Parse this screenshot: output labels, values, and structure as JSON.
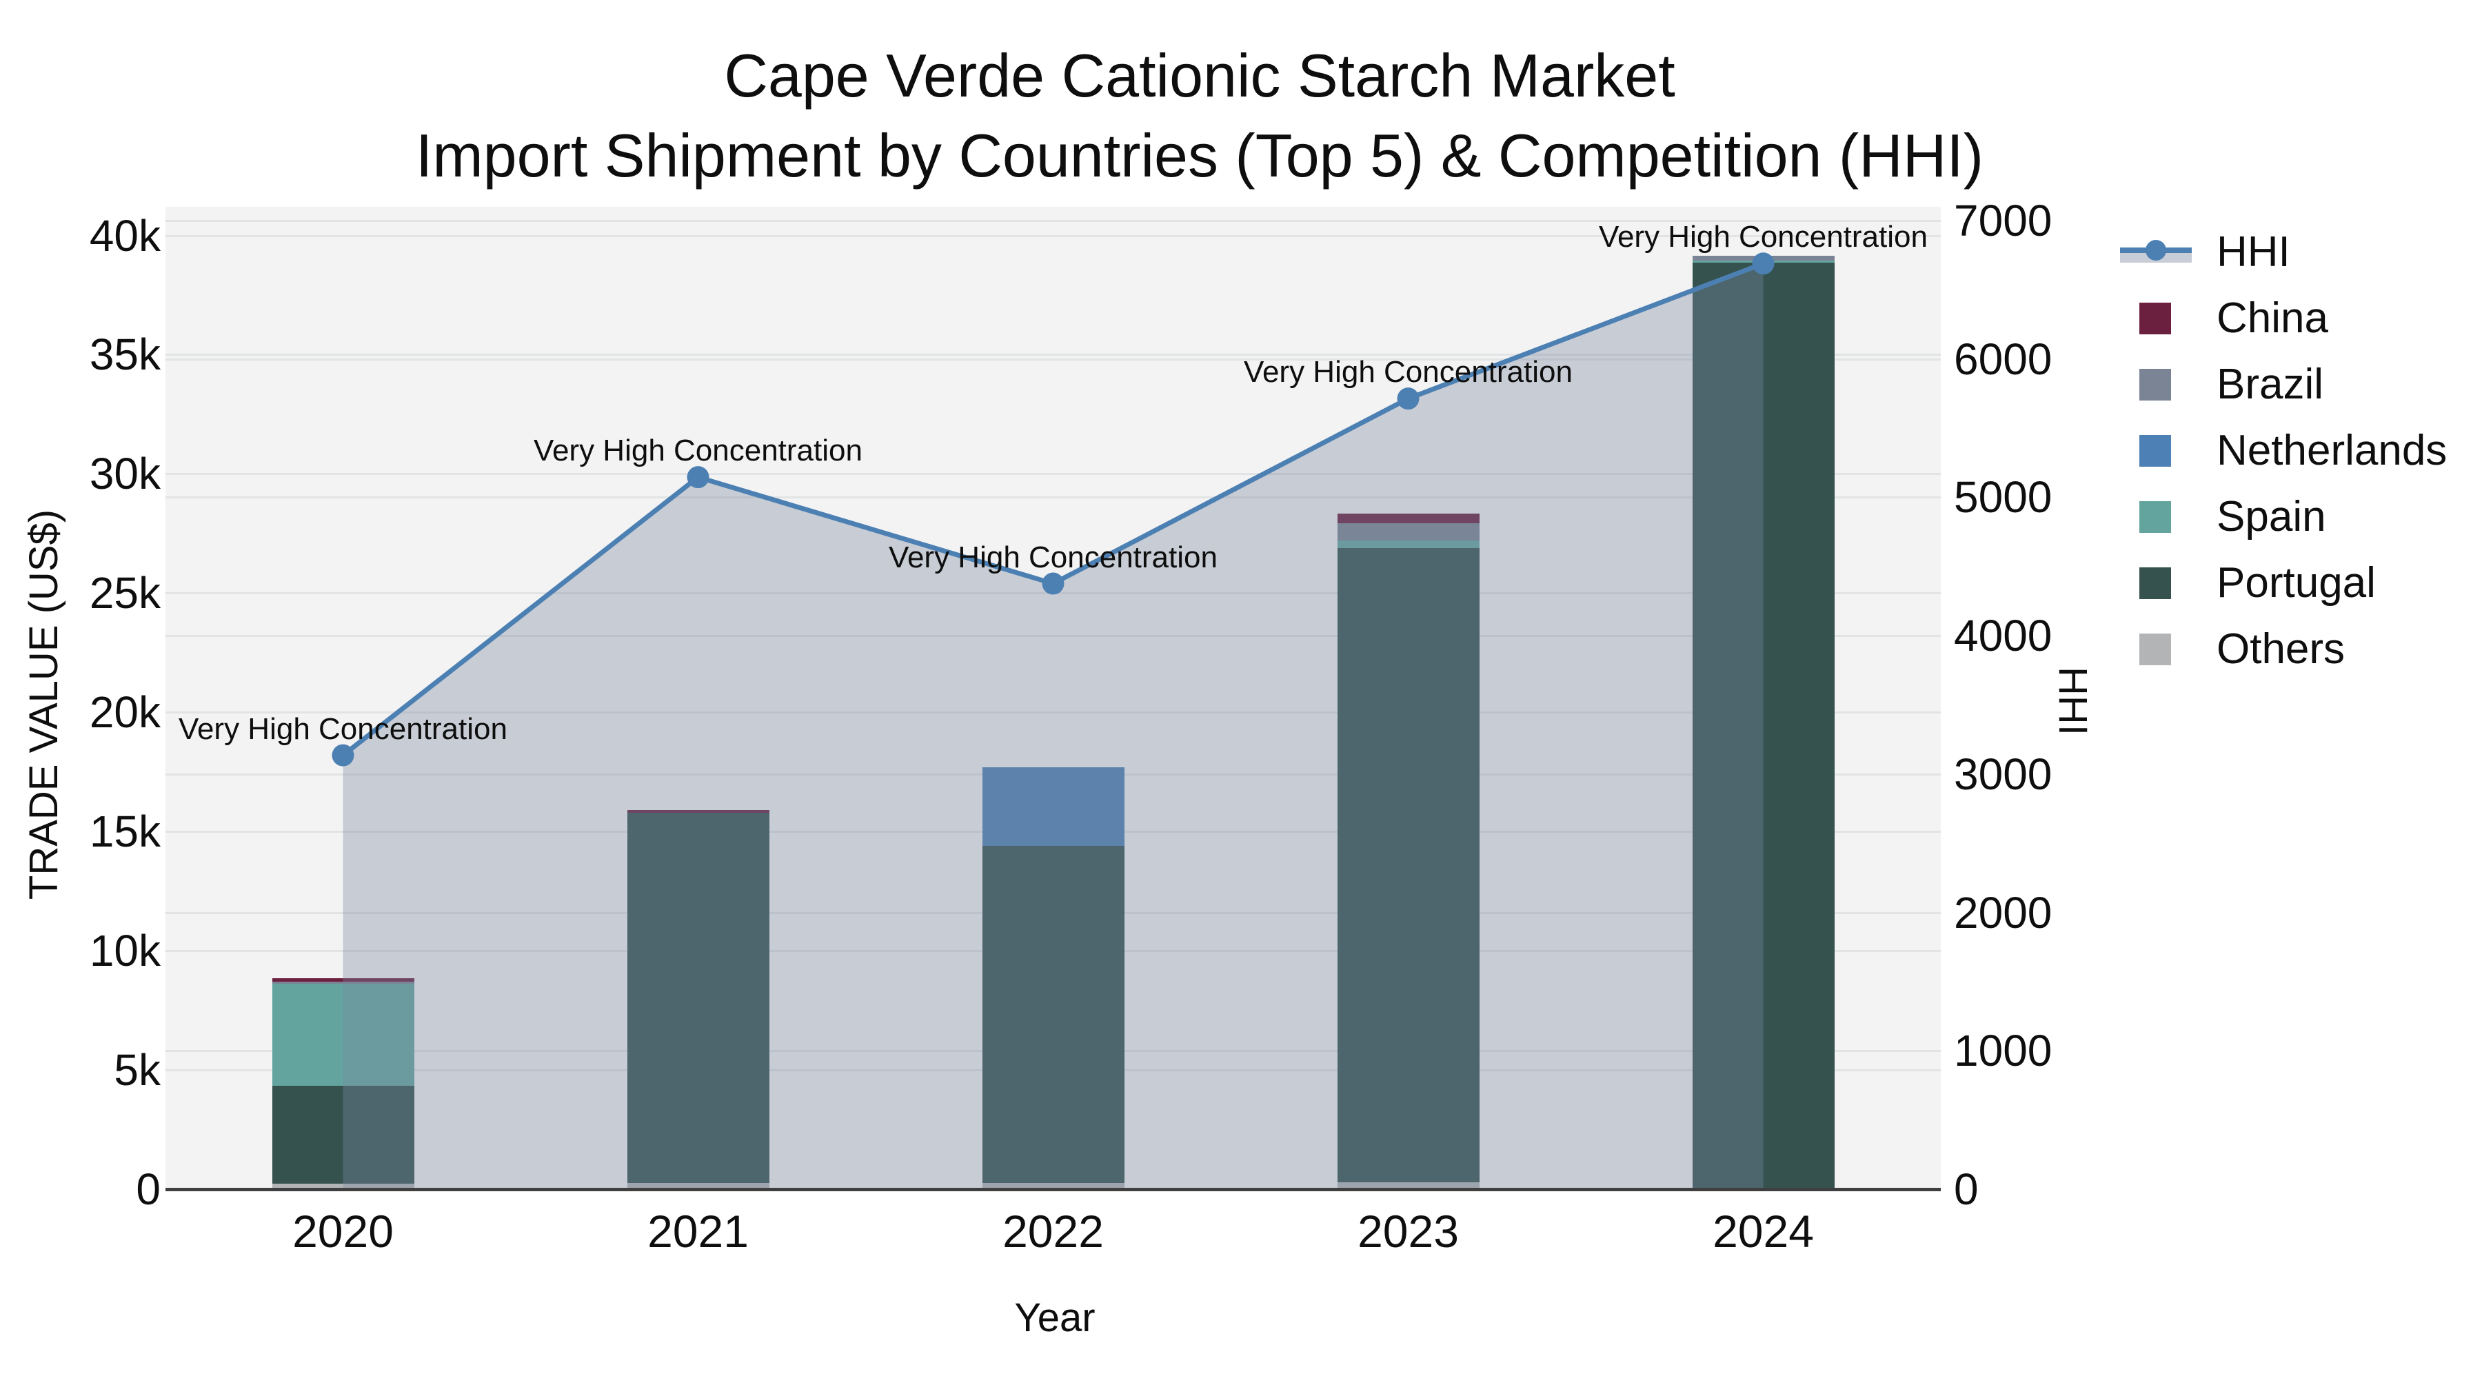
{
  "title": {
    "line1": "Cape Verde Cationic Starch Market",
    "line2": "Import Shipment by Countries (Top 5) & Competition (HHI)"
  },
  "axes": {
    "left": {
      "title": "TRADE VALUE (US$)"
    },
    "right": {
      "title": "HHI"
    },
    "x": {
      "title": "Year"
    }
  },
  "legend": {
    "hhi_band_color": "#c9cdd7",
    "items": [
      {
        "label": "HHI",
        "color": "#4c80b3",
        "type": "line"
      },
      {
        "label": "China",
        "color": "#6b2040",
        "type": "square"
      },
      {
        "label": "Brazil",
        "color": "#7a8494",
        "type": "square"
      },
      {
        "label": "Netherlands",
        "color": "#4d80b5",
        "type": "square"
      },
      {
        "label": "Spain",
        "color": "#63a49f",
        "type": "square"
      },
      {
        "label": "Portugal",
        "color": "#35524f",
        "type": "square"
      },
      {
        "label": "Others",
        "color": "#b3b4b6",
        "type": "square"
      }
    ]
  },
  "chart_data": {
    "type": "combo",
    "title": "Cape Verde Cationic Starch Market — Import Shipment by Countries (Top 5) & Competition (HHI)",
    "xlabel": "Year",
    "ylabel_left": "TRADE VALUE (US$)",
    "ylabel_right": "HHI",
    "categories": [
      "2020",
      "2021",
      "2022",
      "2023",
      "2024"
    ],
    "ylim_left": [
      0,
      41200
    ],
    "ylim_right": [
      0,
      7100
    ],
    "left_ticks": {
      "values": [
        0,
        5000,
        10000,
        15000,
        20000,
        25000,
        30000,
        35000,
        40000
      ],
      "labels": [
        "0",
        "5k",
        "10k",
        "15k",
        "20k",
        "25k",
        "30k",
        "35k",
        "40k"
      ]
    },
    "right_ticks": {
      "values": [
        0,
        1000,
        2000,
        3000,
        4000,
        5000,
        6000,
        7000
      ],
      "labels": [
        "0",
        "1000",
        "2000",
        "3000",
        "4000",
        "5000",
        "6000",
        "7000"
      ]
    },
    "bar_stack_order_bottom_to_top": [
      "Others",
      "Portugal",
      "Spain",
      "Netherlands",
      "Brazil",
      "China"
    ],
    "bar_series": [
      {
        "name": "Others",
        "color": "#b3b4b6",
        "values": [
          230,
          250,
          260,
          300,
          0
        ]
      },
      {
        "name": "Portugal",
        "color": "#35524f",
        "values": [
          4100,
          15530,
          14140,
          26600,
          38850
        ]
      },
      {
        "name": "Spain",
        "color": "#63a49f",
        "values": [
          4280,
          0,
          0,
          320,
          90
        ]
      },
      {
        "name": "Netherlands",
        "color": "#4d80b5",
        "values": [
          0,
          0,
          3300,
          0,
          0
        ]
      },
      {
        "name": "Brazil",
        "color": "#7a8494",
        "values": [
          90,
          0,
          0,
          720,
          200
        ]
      },
      {
        "name": "China",
        "color": "#6b2040",
        "values": [
          150,
          120,
          0,
          380,
          0
        ]
      }
    ],
    "bar_totals": [
      8850,
      15900,
      17700,
      28320,
      39140
    ],
    "line_series": {
      "name": "HHI",
      "axis": "right",
      "color": "#4c80b3",
      "fill_color": "#7a88a0",
      "fill_opacity": 0.36,
      "values": [
        3136,
        5146,
        4377,
        5714,
        6690
      ]
    },
    "annotations": [
      "Very High Concentration",
      "Very High Concentration",
      "Very High Concentration",
      "Very High Concentration",
      "Very High Concentration"
    ],
    "grid": true,
    "legend_position": "right"
  }
}
